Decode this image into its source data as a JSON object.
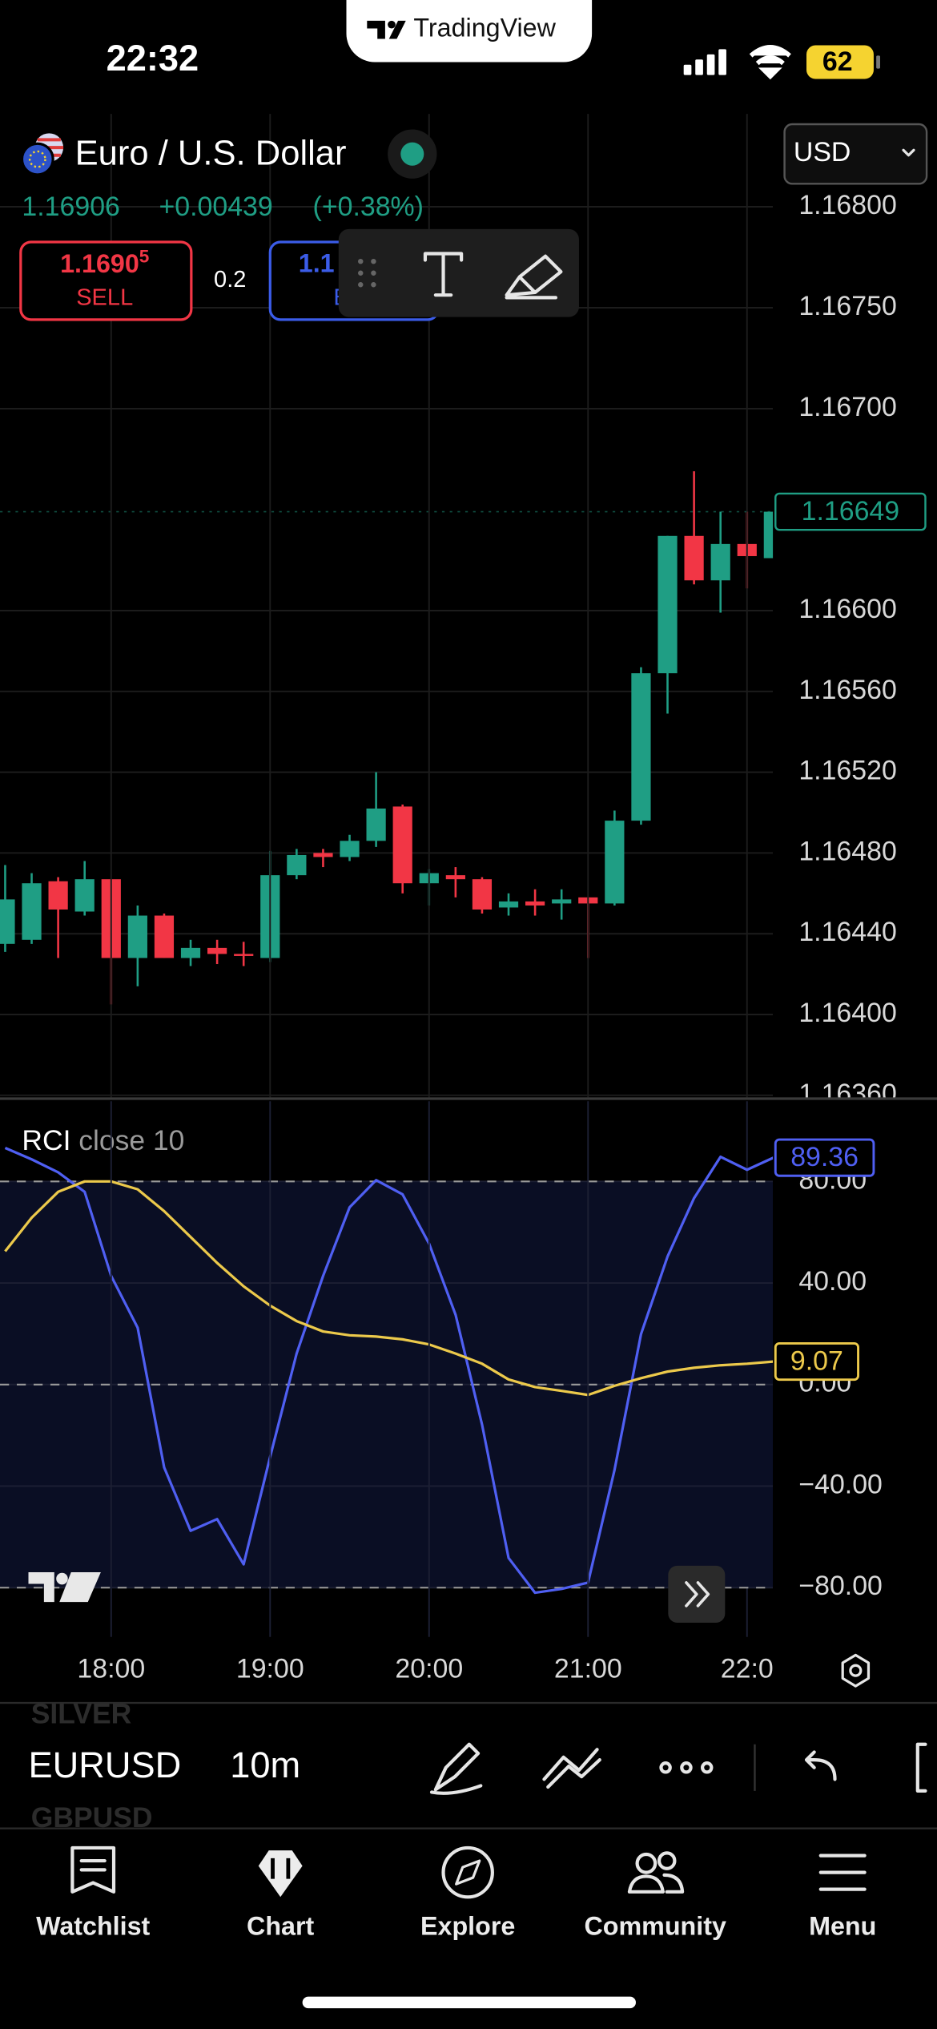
{
  "status_bar": {
    "time": "22:32",
    "battery": "62"
  },
  "header": {
    "brand": "TradingView",
    "symbol_name": "Euro / U.S. Dollar",
    "last": "1.16906",
    "change": "+0.00439",
    "change_pct": "(+0.38%)",
    "currency": "USD"
  },
  "trade": {
    "sell_price": "1.1690",
    "sell_price_sup": "5",
    "sell_label": "SELL",
    "spread": "0.2",
    "buy_price": "1.1",
    "buy_label": "B"
  },
  "chart_data": [
    {
      "type": "candlestick",
      "categories": [
        null,
        null,
        null,
        null,
        "18:00",
        null,
        null,
        null,
        null,
        null,
        "19:00",
        null,
        null,
        null,
        null,
        null,
        "20:00",
        null,
        null,
        null,
        null,
        null,
        "21:00",
        null,
        null,
        null,
        null,
        null,
        "22:0",
        null
      ],
      "open": [
        1.16435,
        1.16437,
        1.16466,
        1.16451,
        1.16467,
        1.16428,
        1.16449,
        1.16428,
        1.16433,
        1.1643,
        1.16428,
        1.16469,
        1.1648,
        1.16478,
        1.16486,
        1.16503,
        1.16465,
        1.16469,
        1.16467,
        1.16453,
        1.16456,
        1.16455,
        1.16458,
        1.16455,
        1.16496,
        1.16569,
        1.16637,
        1.16615,
        1.16633,
        1.16626
      ],
      "high": [
        1.16474,
        1.1647,
        1.16468,
        1.16476,
        1.16467,
        1.16454,
        1.1645,
        1.16437,
        1.16437,
        1.16436,
        1.16481,
        1.16482,
        1.16482,
        1.16489,
        1.1652,
        1.16504,
        1.16472,
        1.16473,
        1.16468,
        1.1646,
        1.16462,
        1.16462,
        1.16458,
        1.16501,
        1.16572,
        1.16637,
        1.16669,
        1.16649,
        1.16649,
        1.16649
      ],
      "low": [
        1.16431,
        1.16435,
        1.16428,
        1.16449,
        1.16405,
        1.16414,
        1.16428,
        1.16424,
        1.16425,
        1.16424,
        1.16426,
        1.16467,
        1.16473,
        1.16476,
        1.16483,
        1.1646,
        1.16454,
        1.16458,
        1.1645,
        1.16449,
        1.16449,
        1.16447,
        1.16428,
        1.16454,
        1.16494,
        1.16549,
        1.16613,
        1.16599,
        1.16611,
        1.16626
      ],
      "close": [
        1.16457,
        1.16465,
        1.16452,
        1.16467,
        1.16428,
        1.16449,
        1.16428,
        1.16433,
        1.1643,
        1.16429,
        1.16469,
        1.16479,
        1.16478,
        1.16486,
        1.16502,
        1.16465,
        1.1647,
        1.16467,
        1.16452,
        1.16456,
        1.16454,
        1.16457,
        1.16455,
        1.16496,
        1.16569,
        1.16637,
        1.16615,
        1.16633,
        1.16627,
        1.16649
      ],
      "up_color": "#1f9e84",
      "down_color": "#f23645",
      "ylim": [
        1.16359,
        1.16846
      ],
      "yticks": [
        {
          "value": 1.1636,
          "label": "1.16360"
        },
        {
          "value": 1.164,
          "label": "1.16400"
        },
        {
          "value": 1.1644,
          "label": "1.16440"
        },
        {
          "value": 1.1648,
          "label": "1.16480"
        },
        {
          "value": 1.1652,
          "label": "1.16520"
        },
        {
          "value": 1.1656,
          "label": "1.16560"
        },
        {
          "value": 1.166,
          "label": "1.16600"
        },
        {
          "value": 1.167,
          "label": "1.16700"
        },
        {
          "value": 1.1675,
          "label": "1.16750"
        },
        {
          "value": 1.168,
          "label": "1.16800"
        }
      ],
      "grid": true
    },
    {
      "type": "line",
      "title": "RCI",
      "subtitle": "close 10",
      "series": [
        {
          "color": "#4f5ff2",
          "values": [
            93.2,
            88.7,
            83.6,
            75.9,
            42.8,
            22.4,
            -32.6,
            -57.6,
            -53.0,
            -70.8,
            -28.5,
            12.2,
            42.8,
            69.8,
            80.5,
            74.9,
            55.5,
            27.5,
            -15.8,
            -68.3,
            -82.0,
            -80.5,
            -78.0,
            -33.6,
            19.9,
            50.4,
            73.4,
            89.7,
            84.6,
            89.36
          ]
        },
        {
          "color": "#ecc94b",
          "values": [
            52.5,
            65.7,
            75.9,
            80.0,
            80.0,
            76.9,
            68.3,
            58.1,
            47.9,
            38.7,
            31.1,
            25.0,
            20.9,
            19.4,
            18.9,
            17.8,
            15.8,
            12.2,
            8.2,
            2.0,
            -1.0,
            -2.5,
            -4.1,
            -0.5,
            2.5,
            5.1,
            6.6,
            7.6,
            8.2,
            9.07
          ]
        }
      ],
      "levels": [
        80,
        0,
        -80
      ],
      "ylim": [
        -99.4,
        111.6
      ],
      "yticks": [
        {
          "value": 80,
          "label": "80.00"
        },
        {
          "value": 40,
          "label": "40.00"
        },
        {
          "value": 0,
          "label": "0.00"
        },
        {
          "value": -40,
          "label": "−40.00"
        },
        {
          "value": -80,
          "label": "−80.00"
        }
      ],
      "grid": true
    }
  ],
  "toolbar": {
    "symbols": [
      "SILVER",
      "EURUSD",
      "GBPUSD"
    ],
    "interval": "10m"
  },
  "tabs": [
    "Watchlist",
    "Chart",
    "Explore",
    "Community",
    "Menu"
  ]
}
